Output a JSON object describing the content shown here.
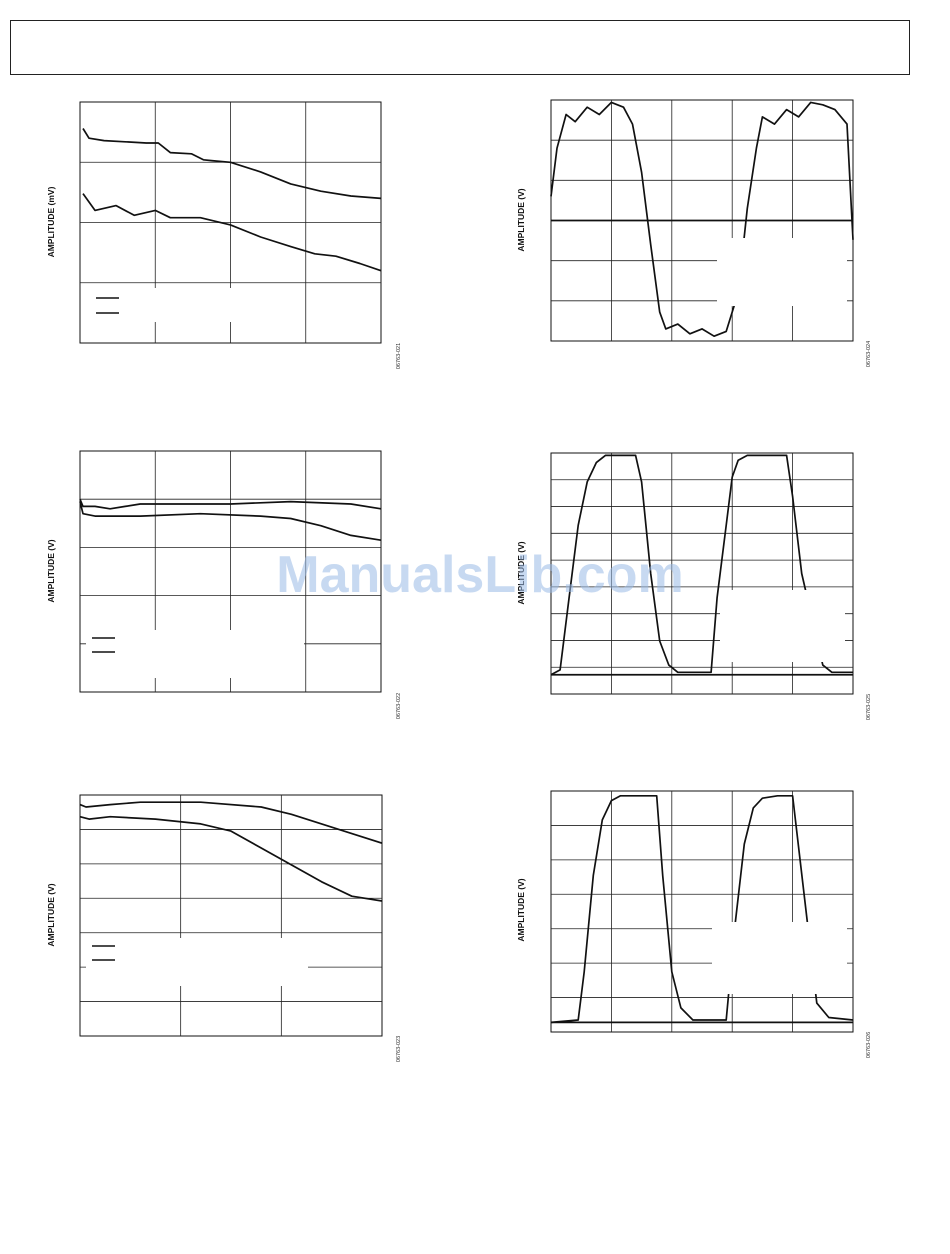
{
  "watermark": "ManualsLib.com",
  "chart_data": [
    {
      "type": "line",
      "ylabel": "AMPLITUDE (mV)",
      "figure_id": "06763-021",
      "grid": {
        "cols": 4,
        "rows": 4
      },
      "series": [
        {
          "values": [
            [
              0.01,
              0.11
            ],
            [
              0.03,
              0.15
            ],
            [
              0.08,
              0.16
            ],
            [
              0.15,
              0.165
            ],
            [
              0.22,
              0.17
            ],
            [
              0.26,
              0.17
            ],
            [
              0.3,
              0.21
            ],
            [
              0.37,
              0.215
            ],
            [
              0.41,
              0.24
            ],
            [
              0.45,
              0.245
            ],
            [
              0.5,
              0.25
            ],
            [
              0.6,
              0.29
            ],
            [
              0.7,
              0.34
            ],
            [
              0.8,
              0.37
            ],
            [
              0.9,
              0.39
            ],
            [
              1.0,
              0.4
            ]
          ]
        },
        {
          "values": [
            [
              0.01,
              0.38
            ],
            [
              0.05,
              0.45
            ],
            [
              0.12,
              0.43
            ],
            [
              0.18,
              0.47
            ],
            [
              0.25,
              0.45
            ],
            [
              0.3,
              0.48
            ],
            [
              0.4,
              0.48
            ],
            [
              0.5,
              0.51
            ],
            [
              0.6,
              0.56
            ],
            [
              0.7,
              0.6
            ],
            [
              0.78,
              0.63
            ],
            [
              0.85,
              0.64
            ],
            [
              0.93,
              0.67
            ],
            [
              1.0,
              0.7
            ]
          ]
        }
      ],
      "legend": {
        "position": "bottom-left",
        "entries": 2
      }
    },
    {
      "type": "line",
      "ylabel": "AMPLITUDE (V)",
      "figure_id": "06763-024",
      "grid": {
        "cols": 5,
        "rows": 6
      },
      "zero_line": 0.5,
      "series": [
        {
          "values": [
            [
              0.0,
              0.4
            ],
            [
              0.02,
              0.2
            ],
            [
              0.05,
              0.06
            ],
            [
              0.08,
              0.09
            ],
            [
              0.12,
              0.03
            ],
            [
              0.16,
              0.06
            ],
            [
              0.2,
              0.01
            ],
            [
              0.24,
              0.03
            ],
            [
              0.27,
              0.1
            ],
            [
              0.3,
              0.3
            ],
            [
              0.33,
              0.6
            ],
            [
              0.36,
              0.88
            ],
            [
              0.38,
              0.95
            ],
            [
              0.42,
              0.93
            ],
            [
              0.46,
              0.97
            ],
            [
              0.5,
              0.95
            ],
            [
              0.54,
              0.98
            ],
            [
              0.58,
              0.96
            ],
            [
              0.62,
              0.8
            ],
            [
              0.65,
              0.45
            ],
            [
              0.68,
              0.2
            ],
            [
              0.7,
              0.07
            ],
            [
              0.74,
              0.1
            ],
            [
              0.78,
              0.04
            ],
            [
              0.82,
              0.07
            ],
            [
              0.86,
              0.01
            ],
            [
              0.9,
              0.02
            ],
            [
              0.94,
              0.04
            ],
            [
              0.98,
              0.1
            ],
            [
              1.0,
              0.58
            ]
          ]
        }
      ]
    },
    {
      "type": "line",
      "ylabel": "AMPLITUDE (V)",
      "figure_id": "06763-022",
      "grid": {
        "cols": 4,
        "rows": 5
      },
      "series": [
        {
          "values": [
            [
              0.0,
              0.2
            ],
            [
              0.01,
              0.23
            ],
            [
              0.05,
              0.23
            ],
            [
              0.1,
              0.24
            ],
            [
              0.15,
              0.23
            ],
            [
              0.2,
              0.22
            ],
            [
              0.3,
              0.22
            ],
            [
              0.5,
              0.22
            ],
            [
              0.7,
              0.21
            ],
            [
              0.9,
              0.22
            ],
            [
              1.0,
              0.24
            ]
          ]
        },
        {
          "values": [
            [
              0.0,
              0.21
            ],
            [
              0.01,
              0.26
            ],
            [
              0.05,
              0.27
            ],
            [
              0.2,
              0.27
            ],
            [
              0.4,
              0.26
            ],
            [
              0.6,
              0.27
            ],
            [
              0.7,
              0.28
            ],
            [
              0.8,
              0.31
            ],
            [
              0.9,
              0.35
            ],
            [
              1.0,
              0.37
            ]
          ]
        }
      ],
      "legend": {
        "position": "bottom-left",
        "entries": 2
      }
    },
    {
      "type": "line",
      "ylabel": "AMPLITUDE (V)",
      "figure_id": "06763-025",
      "grid": {
        "cols": 5,
        "rows": 9
      },
      "zero_line": 0.92,
      "series": [
        {
          "values": [
            [
              0.0,
              0.92
            ],
            [
              0.03,
              0.9
            ],
            [
              0.06,
              0.6
            ],
            [
              0.09,
              0.3
            ],
            [
              0.12,
              0.12
            ],
            [
              0.15,
              0.04
            ],
            [
              0.18,
              0.01
            ],
            [
              0.28,
              0.01
            ],
            [
              0.3,
              0.12
            ],
            [
              0.33,
              0.5
            ],
            [
              0.36,
              0.78
            ],
            [
              0.39,
              0.88
            ],
            [
              0.42,
              0.91
            ],
            [
              0.53,
              0.91
            ],
            [
              0.55,
              0.6
            ],
            [
              0.58,
              0.3
            ],
            [
              0.6,
              0.1
            ],
            [
              0.62,
              0.03
            ],
            [
              0.65,
              0.01
            ],
            [
              0.78,
              0.01
            ],
            [
              0.8,
              0.18
            ],
            [
              0.83,
              0.5
            ],
            [
              0.9,
              0.88
            ],
            [
              0.93,
              0.91
            ],
            [
              1.0,
              0.91
            ]
          ]
        }
      ]
    },
    {
      "type": "line",
      "ylabel": "AMPLITUDE (V)",
      "figure_id": "06763-023",
      "grid": {
        "cols": 3,
        "rows": 7
      },
      "series": [
        {
          "values": [
            [
              0.0,
              0.04
            ],
            [
              0.02,
              0.05
            ],
            [
              0.1,
              0.04
            ],
            [
              0.2,
              0.03
            ],
            [
              0.4,
              0.03
            ],
            [
              0.6,
              0.05
            ],
            [
              0.7,
              0.08
            ],
            [
              0.8,
              0.12
            ],
            [
              0.9,
              0.16
            ],
            [
              1.0,
              0.2
            ]
          ]
        },
        {
          "values": [
            [
              0.0,
              0.09
            ],
            [
              0.03,
              0.1
            ],
            [
              0.1,
              0.09
            ],
            [
              0.25,
              0.1
            ],
            [
              0.4,
              0.12
            ],
            [
              0.5,
              0.15
            ],
            [
              0.6,
              0.22
            ],
            [
              0.7,
              0.29
            ],
            [
              0.8,
              0.36
            ],
            [
              0.9,
              0.42
            ],
            [
              1.0,
              0.44
            ]
          ]
        }
      ],
      "legend": {
        "position": "bottom-left",
        "entries": 2
      }
    },
    {
      "type": "line",
      "ylabel": "AMPLITUDE (V)",
      "figure_id": "06763-026",
      "grid": {
        "cols": 5,
        "rows": 7
      },
      "zero_line": 0.96,
      "series": [
        {
          "values": [
            [
              0.0,
              0.96
            ],
            [
              0.09,
              0.95
            ],
            [
              0.11,
              0.75
            ],
            [
              0.14,
              0.35
            ],
            [
              0.17,
              0.12
            ],
            [
              0.2,
              0.04
            ],
            [
              0.23,
              0.02
            ],
            [
              0.35,
              0.02
            ],
            [
              0.37,
              0.35
            ],
            [
              0.4,
              0.75
            ],
            [
              0.43,
              0.9
            ],
            [
              0.47,
              0.95
            ],
            [
              0.58,
              0.95
            ],
            [
              0.61,
              0.55
            ],
            [
              0.64,
              0.22
            ],
            [
              0.67,
              0.07
            ],
            [
              0.7,
              0.03
            ],
            [
              0.75,
              0.02
            ],
            [
              0.8,
              0.02
            ],
            [
              0.84,
              0.45
            ],
            [
              0.88,
              0.88
            ],
            [
              0.92,
              0.94
            ],
            [
              1.0,
              0.95
            ]
          ]
        }
      ]
    }
  ]
}
